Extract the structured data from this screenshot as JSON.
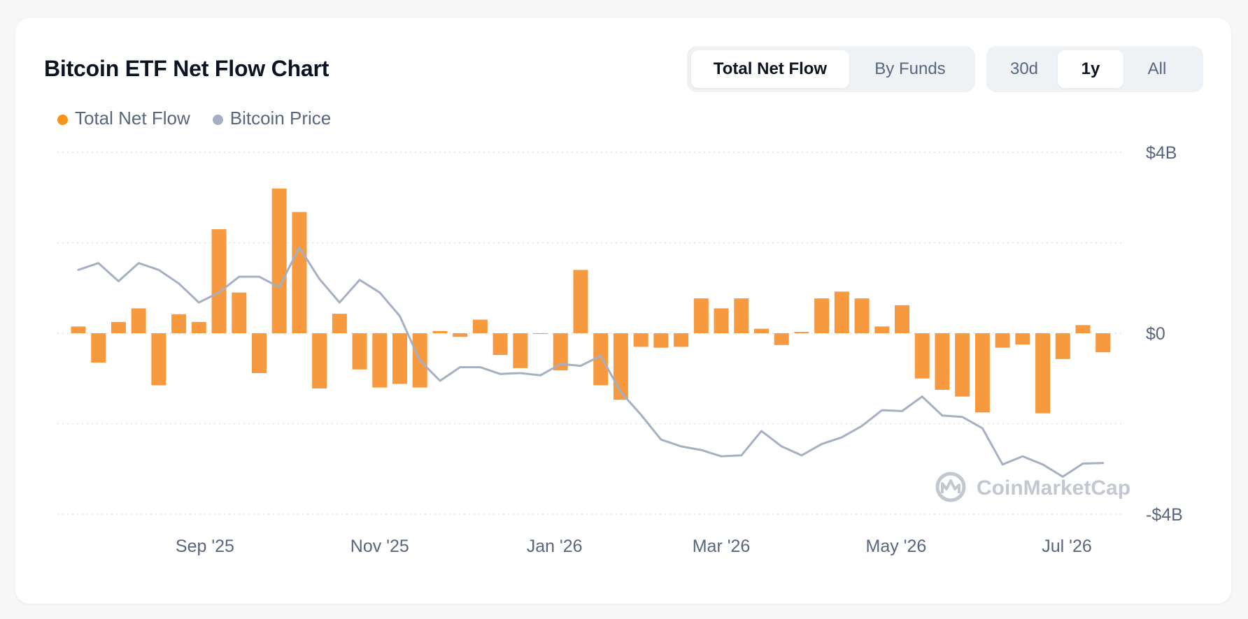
{
  "title": "Bitcoin ETF Net Flow Chart",
  "view_tabs": [
    {
      "label": "Total Net Flow",
      "active": true
    },
    {
      "label": "By Funds",
      "active": false
    }
  ],
  "range_tabs": [
    {
      "label": "30d",
      "active": false
    },
    {
      "label": "1y",
      "active": true
    },
    {
      "label": "All",
      "active": false
    }
  ],
  "legend": [
    {
      "label": "Total Net Flow",
      "color": "#f7931a"
    },
    {
      "label": "Bitcoin Price",
      "color": "#a6b0c3"
    }
  ],
  "watermark": "CoinMarketCap",
  "colors": {
    "bar": "#f6993f",
    "price_line": "#a6b0c3",
    "grid": "#dfe3e8"
  },
  "chart_data": {
    "type": "bar",
    "title": "Bitcoin ETF Net Flow Chart",
    "x_tick_labels": [
      "Sep '25",
      "Nov '25",
      "Jan '26",
      "Mar '26",
      "May '26",
      "Jul '26"
    ],
    "x_tick_positions": [
      6.3,
      15,
      23.7,
      32,
      40.7,
      49.2
    ],
    "y_tick_labels": [
      "$4B",
      "$0",
      "-$4B"
    ],
    "ylim": [
      -4,
      4
    ],
    "grid": true,
    "legend_position": "top-left",
    "series": [
      {
        "name": "Total Net Flow",
        "type": "bar",
        "unit": "$B",
        "values": [
          0.15,
          -0.65,
          0.25,
          0.55,
          -1.15,
          0.42,
          0.25,
          2.3,
          0.9,
          -0.88,
          3.2,
          2.68,
          -1.22,
          0.43,
          -0.8,
          -1.2,
          -1.12,
          -1.2,
          0.05,
          -0.08,
          0.3,
          -0.48,
          -0.77,
          0.0,
          -0.82,
          1.4,
          -1.15,
          -1.47,
          -0.3,
          -0.32,
          -0.3,
          0.77,
          0.55,
          0.77,
          0.1,
          -0.26,
          0.03,
          0.77,
          0.92,
          0.77,
          0.15,
          0.62,
          -1.0,
          -1.25,
          -1.4,
          -1.75,
          -0.32,
          -0.25,
          -1.77,
          -0.57,
          0.18,
          -0.42
        ]
      },
      {
        "name": "Bitcoin Price",
        "type": "line",
        "values": [
          1.4,
          1.55,
          1.15,
          1.55,
          1.4,
          1.1,
          0.68,
          0.9,
          1.25,
          1.25,
          1.02,
          1.9,
          1.2,
          0.68,
          1.18,
          0.9,
          0.38,
          -0.6,
          -1.05,
          -0.75,
          -0.75,
          -0.9,
          -0.88,
          -0.93,
          -0.68,
          -0.72,
          -0.5,
          -1.3,
          -1.8,
          -2.35,
          -2.5,
          -2.58,
          -2.72,
          -2.7,
          -2.16,
          -2.5,
          -2.7,
          -2.45,
          -2.3,
          -2.05,
          -1.7,
          -1.72,
          -1.4,
          -1.82,
          -1.85,
          -2.1,
          -2.9,
          -2.72,
          -2.9,
          -3.17,
          -2.88,
          -2.87
        ]
      }
    ]
  }
}
